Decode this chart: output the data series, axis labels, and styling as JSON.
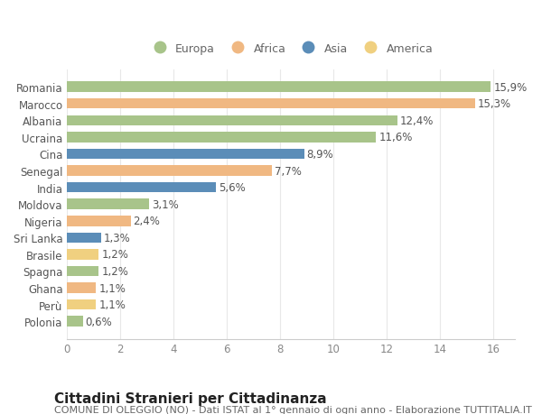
{
  "categories": [
    "Romania",
    "Marocco",
    "Albania",
    "Ucraina",
    "Cina",
    "Senegal",
    "India",
    "Moldova",
    "Nigeria",
    "Sri Lanka",
    "Brasile",
    "Spagna",
    "Ghana",
    "Perù",
    "Polonia"
  ],
  "values": [
    15.9,
    15.3,
    12.4,
    11.6,
    8.9,
    7.7,
    5.6,
    3.1,
    2.4,
    1.3,
    1.2,
    1.2,
    1.1,
    1.1,
    0.6
  ],
  "labels": [
    "15,9%",
    "15,3%",
    "12,4%",
    "11,6%",
    "8,9%",
    "7,7%",
    "5,6%",
    "3,1%",
    "2,4%",
    "1,3%",
    "1,2%",
    "1,2%",
    "1,1%",
    "1,1%",
    "0,6%"
  ],
  "colors": [
    "#a8c48a",
    "#f0b882",
    "#a8c48a",
    "#a8c48a",
    "#5b8db8",
    "#f0b882",
    "#5b8db8",
    "#a8c48a",
    "#f0b882",
    "#5b8db8",
    "#f0d080",
    "#a8c48a",
    "#f0b882",
    "#f0d080",
    "#a8c48a"
  ],
  "legend_labels": [
    "Europa",
    "Africa",
    "Asia",
    "America"
  ],
  "legend_colors": [
    "#a8c48a",
    "#f0b882",
    "#5b8db8",
    "#f0d080"
  ],
  "title": "Cittadini Stranieri per Cittadinanza",
  "subtitle": "COMUNE DI OLEGGIO (NO) - Dati ISTAT al 1° gennaio di ogni anno - Elaborazione TUTTITALIA.IT",
  "xlim": [
    0,
    16.8
  ],
  "xticks": [
    0,
    2,
    4,
    6,
    8,
    10,
    12,
    14,
    16
  ],
  "background_color": "#ffffff",
  "grid_color": "#e8e8e8",
  "bar_height": 0.62,
  "label_fontsize": 8.5,
  "tick_fontsize": 8.5,
  "title_fontsize": 11,
  "subtitle_fontsize": 8
}
